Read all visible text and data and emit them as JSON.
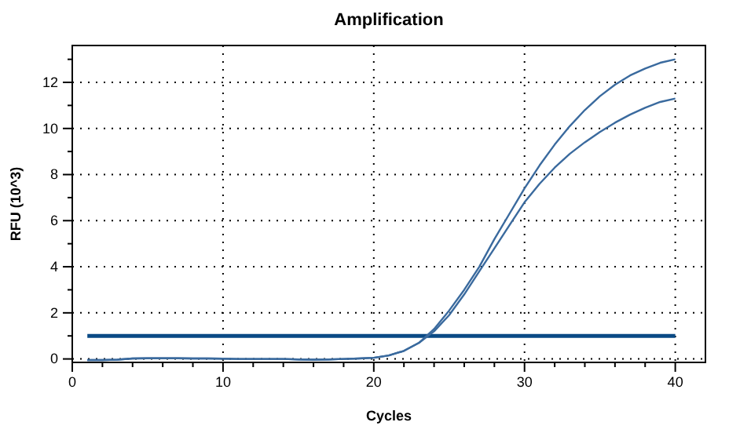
{
  "chart_data": {
    "type": "line",
    "title": "Amplification",
    "xlabel": "Cycles",
    "ylabel": "RFU (10^3)",
    "x": [
      1,
      2,
      3,
      4,
      5,
      6,
      7,
      8,
      9,
      10,
      11,
      12,
      13,
      14,
      15,
      16,
      17,
      18,
      19,
      20,
      21,
      22,
      23,
      24,
      25,
      26,
      27,
      28,
      29,
      30,
      31,
      32,
      33,
      34,
      35,
      36,
      37,
      38,
      39,
      40
    ],
    "series": [
      {
        "color": "#3a6a9e",
        "values": [
          -0.05,
          -0.05,
          -0.03,
          0.02,
          0.03,
          0.03,
          0.03,
          0.02,
          0.02,
          0.01,
          0,
          0,
          0,
          0,
          -0.02,
          -0.03,
          -0.02,
          0,
          0.02,
          0.05,
          0.15,
          0.35,
          0.7,
          1.3,
          2.1,
          3.0,
          4.0,
          5.2,
          6.3,
          7.4,
          8.4,
          9.3,
          10.1,
          10.8,
          11.4,
          11.9,
          12.3,
          12.6,
          12.85,
          13.0
        ]
      },
      {
        "color": "#3a6a9e",
        "values": [
          -0.05,
          -0.05,
          -0.03,
          0.02,
          0.03,
          0.03,
          0.03,
          0.02,
          0.02,
          0.01,
          0,
          0,
          0,
          0,
          -0.02,
          -0.03,
          -0.02,
          0,
          0.02,
          0.05,
          0.15,
          0.35,
          0.7,
          1.2,
          1.9,
          2.8,
          3.8,
          4.8,
          5.8,
          6.8,
          7.6,
          8.3,
          8.9,
          9.4,
          9.85,
          10.25,
          10.6,
          10.9,
          11.15,
          11.3
        ]
      }
    ],
    "xlim": [
      0,
      42
    ],
    "ylim": [
      -0.15,
      13.6
    ],
    "xticks": [
      0,
      {
        "value": 2,
        "label": null
      },
      {
        "value": 4,
        "label": null
      },
      {
        "value": 6,
        "label": null
      },
      {
        "value": 8,
        "label": null
      },
      10,
      {
        "value": 12,
        "label": null
      },
      {
        "value": 14,
        "label": null
      },
      {
        "value": 16,
        "label": null
      },
      {
        "value": 18,
        "label": null
      },
      20,
      {
        "value": 22,
        "label": null
      },
      {
        "value": 24,
        "label": null
      },
      {
        "value": 26,
        "label": null
      },
      {
        "value": 28,
        "label": null
      },
      30,
      {
        "value": 32,
        "label": null
      },
      {
        "value": 34,
        "label": null
      },
      {
        "value": 36,
        "label": null
      },
      {
        "value": 38,
        "label": null
      },
      40
    ],
    "yticks": [
      0,
      {
        "value": 1,
        "label": null
      },
      2,
      {
        "value": 3,
        "label": null
      },
      4,
      {
        "value": 5,
        "label": null
      },
      6,
      {
        "value": 7,
        "label": null
      },
      8,
      {
        "value": 9,
        "label": null
      },
      10,
      {
        "value": 11,
        "label": null
      },
      12,
      {
        "value": 13,
        "label": null
      }
    ],
    "ref_lines": [
      {
        "axis": "y",
        "value": 1,
        "color": "#0a4a85"
      }
    ],
    "grid": true,
    "marker": "none",
    "line_style": "solid"
  }
}
